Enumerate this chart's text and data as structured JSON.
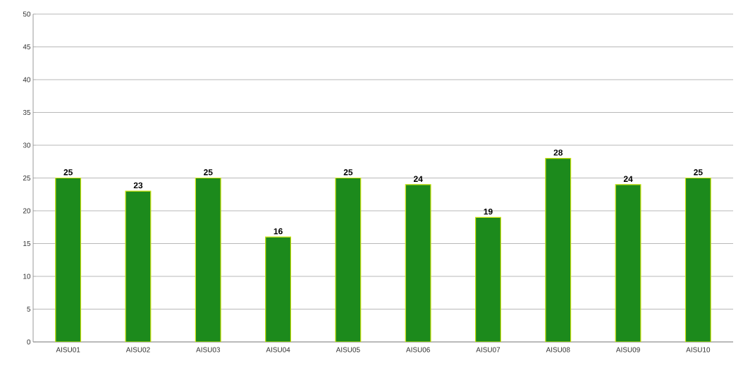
{
  "chart_data": {
    "type": "bar",
    "categories": [
      "AISU01",
      "AISU02",
      "AISU03",
      "AISU04",
      "AISU05",
      "AISU06",
      "AISU07",
      "AISU08",
      "AISU09",
      "AISU10"
    ],
    "values": [
      25,
      23,
      25,
      16,
      25,
      24,
      19,
      28,
      24,
      25
    ],
    "color": "#1c8a1c",
    "ylim": [
      0,
      50
    ],
    "yticks": [
      0,
      5,
      10,
      15,
      20,
      25,
      30,
      35,
      40,
      45,
      50
    ],
    "grid": "y",
    "data_labels": true
  }
}
